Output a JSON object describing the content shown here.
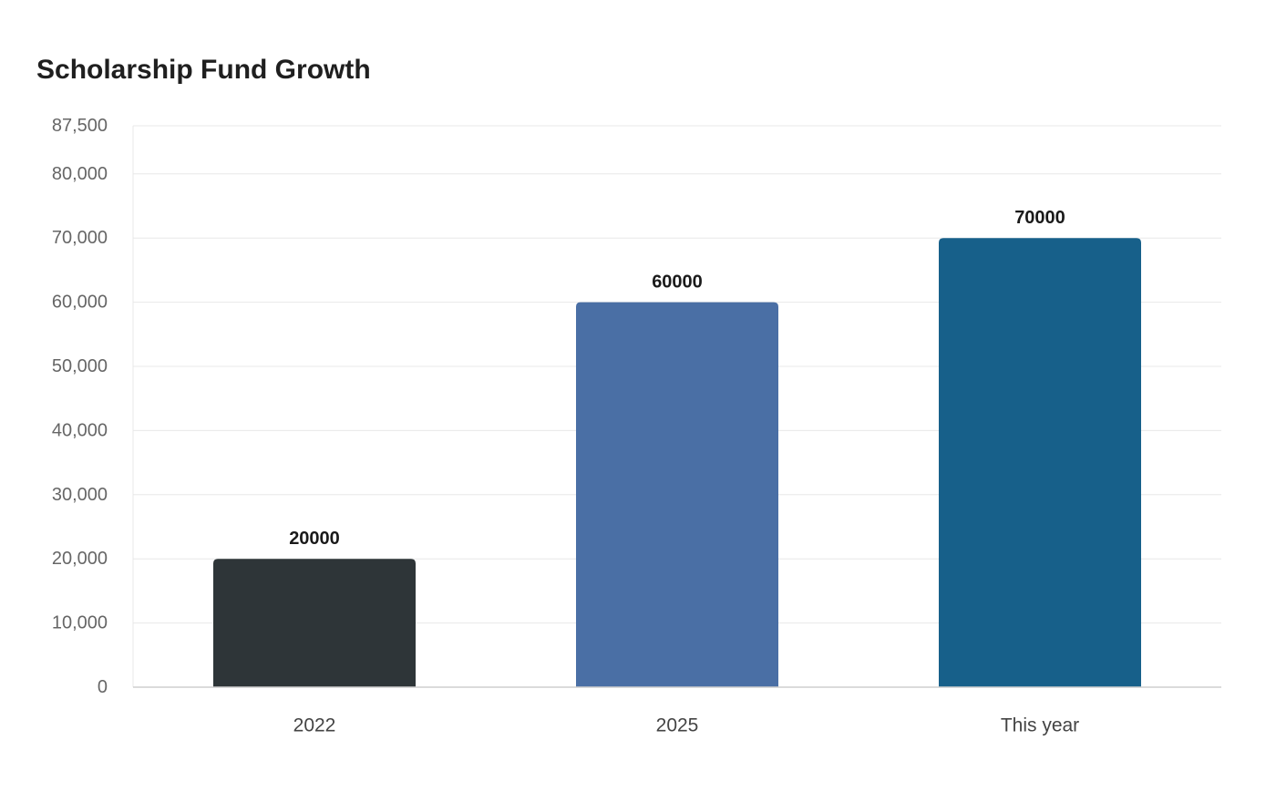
{
  "chart_data": {
    "type": "bar",
    "title": "Scholarship Fund Growth",
    "xlabel": "",
    "ylabel": "",
    "categories": [
      "2022",
      "2025",
      "This year"
    ],
    "values": [
      20000,
      60000,
      70000
    ],
    "data_labels": [
      "20000",
      "60000",
      "70000"
    ],
    "colors": [
      "#2e3538",
      "#4a6fa5",
      "#17608a"
    ],
    "ylim": [
      0,
      87500
    ],
    "y_ticks": [
      0,
      10000,
      20000,
      30000,
      40000,
      50000,
      60000,
      70000,
      80000,
      87500
    ],
    "y_tick_labels": [
      "0",
      "10,000",
      "20,000",
      "30,000",
      "40,000",
      "50,000",
      "60,000",
      "70,000",
      "80,000",
      "87,500"
    ],
    "grid": true,
    "legend": "none"
  }
}
